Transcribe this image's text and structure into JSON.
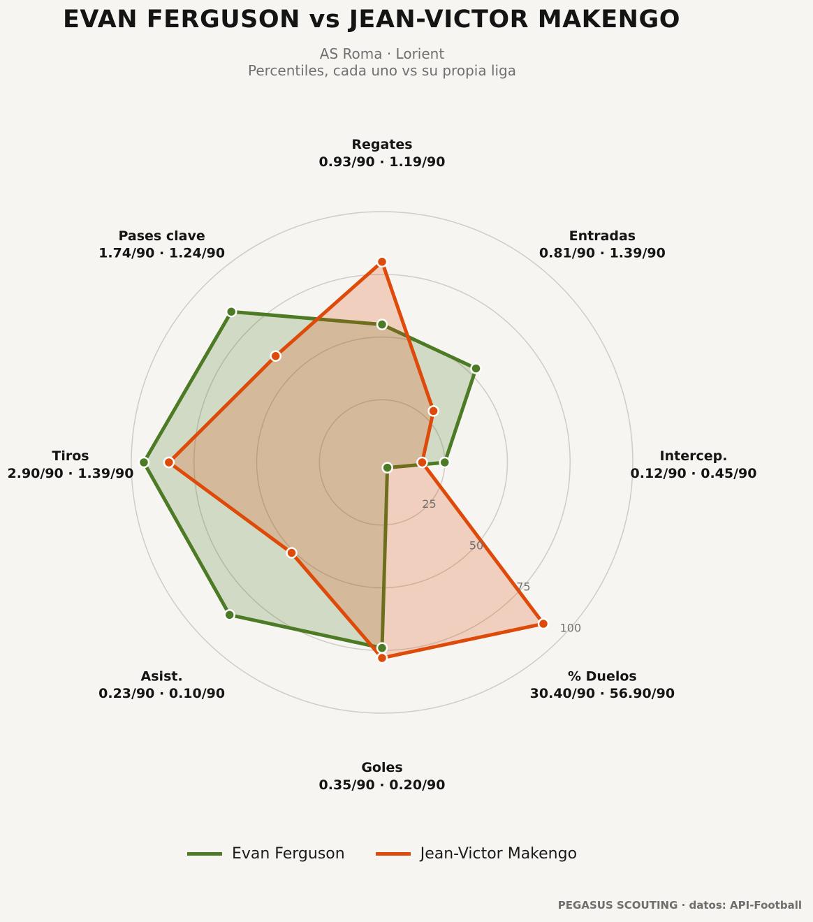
{
  "header": {
    "title": "EVAN FERGUSON  vs  JEAN-VICTOR MAKENGO",
    "subtitle_line1": "AS Roma · Lorient",
    "subtitle_line2": "Percentiles, cada uno vs su propia liga"
  },
  "footer": {
    "credit": "PEGASUS SCOUTING · datos: API-Football"
  },
  "chart_data": {
    "type": "radar",
    "scale": "percentile",
    "rlim": [
      0,
      100
    ],
    "ring_labels": [
      "25",
      "50",
      "75",
      "100"
    ],
    "ring_values": [
      25,
      50,
      75,
      100
    ],
    "axes": [
      {
        "name": "Regates",
        "detail": "0.93/90 · 1.19/90"
      },
      {
        "name": "Entradas",
        "detail": "0.81/90 · 1.39/90"
      },
      {
        "name": "Intercep.",
        "detail": "0.12/90 · 0.45/90"
      },
      {
        "name": "% Duelos",
        "detail": "30.40/90 · 56.90/90"
      },
      {
        "name": "Goles",
        "detail": "0.35/90 · 0.20/90"
      },
      {
        "name": "Asist.",
        "detail": "0.23/90 · 0.10/90"
      },
      {
        "name": "Tiros",
        "detail": "2.90/90 · 1.39/90"
      },
      {
        "name": "Pases clave",
        "detail": "1.74/90 · 1.24/90"
      }
    ],
    "series": [
      {
        "name": "Evan Ferguson",
        "color": "#4d7a25",
        "values": [
          55,
          53,
          25,
          3,
          74,
          86,
          95,
          85
        ]
      },
      {
        "name": "Jean-Victor Makengo",
        "color": "#dd4a0a",
        "values": [
          80,
          29,
          16,
          91,
          78,
          51,
          85,
          60
        ]
      }
    ],
    "legend_position": "bottom-center",
    "grid": true
  }
}
